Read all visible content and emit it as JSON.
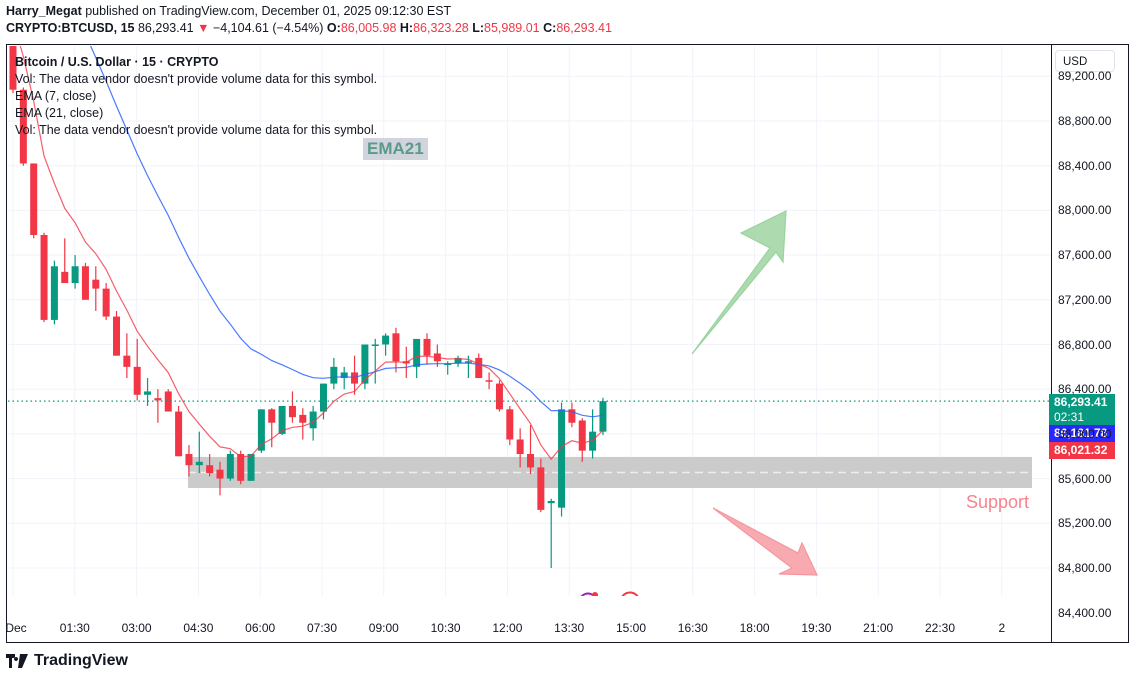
{
  "header": {
    "author": "Harry_Megat",
    "published_text": "published on TradingView.com, December 01, 2025 09:12:30 EST",
    "symbol": "CRYPTO:BTCUSD, 15",
    "last": "86,293.41",
    "change": "−4,104.61 (−4.54%)",
    "o_label": "O:",
    "o": "86,005.98",
    "h_label": "H:",
    "h": "86,323.28",
    "l_label": "L:",
    "l": "85,989.01",
    "c_label": "C:",
    "c": "86,293.41"
  },
  "legend": {
    "title": "Bitcoin / U.S. Dollar · 15 · CRYPTO",
    "vol1": "Vol: The data vendor doesn't provide volume data for this symbol.",
    "ema7": "EMA (7, close)",
    "ema21": "EMA (21, close)",
    "vol2": "Vol: The data vendor doesn't provide volume data for this symbol."
  },
  "currency": "USD",
  "price_tags": {
    "last": "86,293.41",
    "countdown": "02:31",
    "ema21": "86,181.78",
    "ema7": "86,021.32"
  },
  "annotations": {
    "ema21_label": "EMA21",
    "support_label": "Support"
  },
  "brand": "TradingView",
  "colors": {
    "up": "#089981",
    "down": "#f23645",
    "ema7": "#f23645",
    "ema21": "#2962ff",
    "support_zone": "#c8c8c8",
    "arrow_up": "#a5d6a7",
    "arrow_down": "#f7a1a8"
  },
  "chart_data": {
    "type": "candlestick",
    "title": "Bitcoin / U.S. Dollar · 15 · CRYPTO",
    "xlabel": "",
    "ylabel": "USD",
    "x_ticks": [
      "Dec",
      "01:30",
      "03:00",
      "04:30",
      "06:00",
      "07:30",
      "09:00",
      "10:30",
      "12:00",
      "13:30",
      "15:00",
      "16:30",
      "18:00",
      "19:30",
      "21:00",
      "22:30",
      "2"
    ],
    "y_ticks": [
      84400,
      84800,
      85200,
      85600,
      86000,
      86400,
      86800,
      87200,
      87600,
      88000,
      88400,
      88800,
      89200
    ],
    "ylim": [
      84400,
      89300
    ],
    "grid": true,
    "candles_ohlc_approx": [
      [
        89500,
        89550,
        89050,
        89080
      ],
      [
        89080,
        89100,
        88400,
        88420
      ],
      [
        88420,
        88420,
        87750,
        87780
      ],
      [
        87780,
        87800,
        87000,
        87020
      ],
      [
        87020,
        87550,
        86980,
        87500
      ],
      [
        87450,
        87750,
        87380,
        87350
      ],
      [
        87350,
        87600,
        87300,
        87500
      ],
      [
        87500,
        87530,
        87250,
        87200
      ],
      [
        87380,
        87500,
        87100,
        87300
      ],
      [
        87300,
        87350,
        87020,
        87050
      ],
      [
        87050,
        87100,
        86700,
        86700
      ],
      [
        86700,
        86900,
        86500,
        86600
      ],
      [
        86600,
        86850,
        86300,
        86350
      ],
      [
        86350,
        86500,
        86250,
        86380
      ],
      [
        86320,
        86400,
        86100,
        86300
      ],
      [
        86380,
        86400,
        86200,
        86200
      ],
      [
        86200,
        86250,
        85800,
        85800
      ],
      [
        85820,
        85900,
        85620,
        85720
      ],
      [
        85720,
        86020,
        85650,
        85750
      ],
      [
        85720,
        85820,
        85620,
        85650
      ],
      [
        85680,
        85750,
        85450,
        85600
      ],
      [
        85600,
        85850,
        85580,
        85820
      ],
      [
        85820,
        85850,
        85550,
        85580
      ],
      [
        85580,
        85820,
        85580,
        85820
      ],
      [
        85850,
        86220,
        85830,
        86220
      ],
      [
        86220,
        86230,
        85880,
        86100
      ],
      [
        86000,
        86250,
        85990,
        86250
      ],
      [
        86250,
        86380,
        86100,
        86150
      ],
      [
        86170,
        86230,
        85950,
        86100
      ],
      [
        86050,
        86250,
        85940,
        86200
      ],
      [
        86200,
        86450,
        86130,
        86450
      ],
      [
        86450,
        86680,
        86400,
        86600
      ],
      [
        86500,
        86600,
        86400,
        86550
      ],
      [
        86550,
        86700,
        86350,
        86450
      ],
      [
        86450,
        86800,
        86400,
        86800
      ],
      [
        86800,
        86850,
        86450,
        86800
      ],
      [
        86800,
        86900,
        86700,
        86880
      ],
      [
        86900,
        86950,
        86550,
        86650
      ],
      [
        86650,
        86780,
        86500,
        86630
      ],
      [
        86600,
        86820,
        86500,
        86850
      ],
      [
        86850,
        86900,
        86620,
        86700
      ],
      [
        86720,
        86800,
        86600,
        86650
      ],
      [
        86630,
        86650,
        86530,
        86630
      ],
      [
        86630,
        86700,
        86600,
        86680
      ],
      [
        86650,
        86700,
        86500,
        86650
      ],
      [
        86680,
        86720,
        86500,
        86500
      ],
      [
        86480,
        86550,
        86400,
        86470
      ],
      [
        86450,
        86480,
        86200,
        86220
      ],
      [
        86220,
        86250,
        85900,
        85950
      ],
      [
        85950,
        86050,
        85700,
        85820
      ],
      [
        85820,
        86080,
        85640,
        85700
      ],
      [
        85700,
        85780,
        85300,
        85320
      ],
      [
        85380,
        85420,
        84800,
        85400
      ],
      [
        85340,
        86280,
        85260,
        86220
      ],
      [
        86220,
        86280,
        86060,
        86100
      ],
      [
        86120,
        86140,
        85750,
        85850
      ],
      [
        85850,
        86220,
        85780,
        86020
      ],
      [
        86020,
        86323,
        85989,
        86293
      ]
    ],
    "ema7_last": 86021.32,
    "ema21_last": 86181.78,
    "last_price": 86293.41,
    "support_zone": [
      85570,
      85740
    ]
  }
}
